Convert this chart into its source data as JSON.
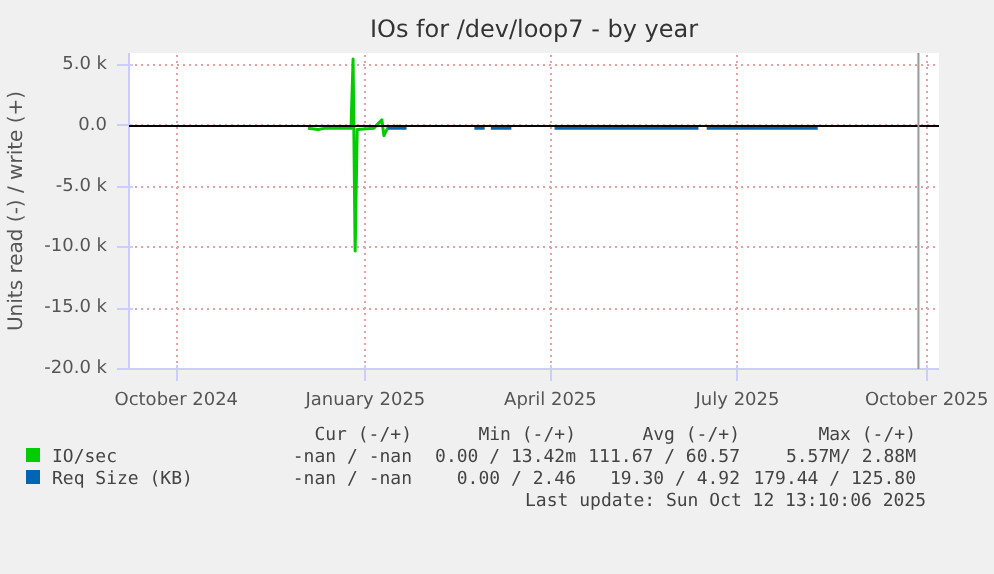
{
  "chart_data": {
    "type": "line",
    "title": "IOs for /dev/loop7 - by year",
    "ylabel": "Units read (-) / write (+)",
    "xlim": [
      "2024-09-23",
      "2025-10-22"
    ],
    "ylim": [
      -20000,
      6000
    ],
    "xticks": [
      {
        "value": "2024-10-16",
        "label": "October 2024"
      },
      {
        "value": "2025-01-16",
        "label": "January 2025"
      },
      {
        "value": "2025-04-16",
        "label": "April 2025"
      },
      {
        "value": "2025-07-16",
        "label": "July 2025"
      },
      {
        "value": "2025-10-16",
        "label": "October 2025"
      }
    ],
    "yticks": [
      {
        "value": -20000,
        "label": "-20.0 k"
      },
      {
        "value": -15000,
        "label": "-15.0 k"
      },
      {
        "value": -10000,
        "label": "-10.0 k"
      },
      {
        "value": -5000,
        "label": "-5.0 k"
      },
      {
        "value": 0,
        "label": "0.0"
      },
      {
        "value": 5000,
        "label": "5.0 k"
      }
    ],
    "grid": true,
    "legend": "bottom",
    "series": [
      {
        "name": "IO/sec",
        "color": "#00cc00",
        "x": [
          "2024-12-19",
          "2024-12-24",
          "2024-12-27",
          "2025-01-03",
          "2025-01-09",
          "2025-01-10",
          "2025-01-11",
          "2025-01-12",
          "2025-01-20",
          "2025-01-24",
          "2025-01-25",
          "2025-01-27",
          "2025-02-01"
        ],
        "values": [
          -200,
          -300,
          -200,
          -200,
          -200,
          5500,
          -10300,
          -300,
          -200,
          500,
          -800,
          -100,
          0
        ]
      },
      {
        "name": "Req Size (KB)",
        "color": "#0066b3",
        "x": [
          "2025-01-27",
          "2025-02-05",
          "2025-02-06",
          "2025-03-10",
          "2025-03-15",
          "2025-03-16",
          "2025-03-18",
          "2025-03-28",
          "2025-03-29",
          "2025-04-18",
          "2025-06-27",
          "2025-06-28",
          "2025-07-01",
          "2025-08-24"
        ],
        "values": [
          -200,
          -200,
          null,
          -200,
          -200,
          null,
          -200,
          -200,
          null,
          -200,
          -200,
          null,
          -200,
          -200
        ]
      }
    ],
    "ref_lines": [
      {
        "axis": "y",
        "value": 0,
        "color": "#000000"
      },
      {
        "axis": "x",
        "value": "2025-10-12",
        "color": "#999999"
      }
    ],
    "annotations": [
      "Cur (-/+)",
      "Min (-/+)",
      "Avg (-/+)",
      "Max (-/+)",
      "-nan / -nan",
      "0.00 / 13.42m",
      "111.67 / 60.57",
      "5.57M/ 2.88M",
      "-nan / -nan",
      "0.00 / 2.46",
      "19.30 / 4.92",
      "179.44 / 125.80",
      "Last update: Sun Oct 12 13:10:06 2025"
    ]
  }
}
